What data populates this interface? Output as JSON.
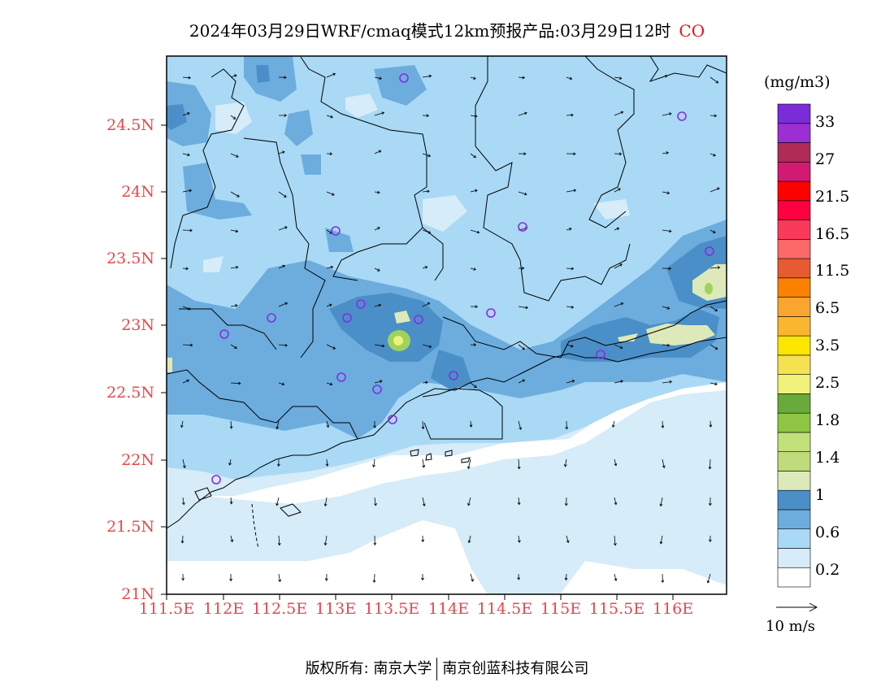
{
  "title": {
    "main": "2024年03月29日WRF/cmaq模式12km预报产品:03月29日12时",
    "species": "CO"
  },
  "map": {
    "lat_ticks": [
      "24.5N",
      "24N",
      "23.5N",
      "23N",
      "22.5N",
      "22N",
      "21.5N",
      "21N"
    ],
    "lon_ticks": [
      "111.5E",
      "112E",
      "112.5E",
      "113E",
      "113.5E",
      "114E",
      "114.5E",
      "115E",
      "115.5E",
      "116E"
    ],
    "colors": {
      "background": "#ffffff",
      "level_0_2": "#d6ecf8",
      "level_0_6": "#a9d9f5",
      "level_1": "#6cadde",
      "level_1_4": "#4a8fc7",
      "level_high": "#dde9b8",
      "peak_green": "#9ed25c",
      "peak_yellow": "#eef27a",
      "station_marker": "#8a2be2",
      "axis_label": "#e8474a"
    }
  },
  "colorbar": {
    "unit": "(mg/m3)",
    "colors": [
      "#ffffff",
      "#d6ecf8",
      "#a9d9f5",
      "#6cadde",
      "#4a8fc7",
      "#dde9b8",
      "#c0db7c",
      "#c2e07a",
      "#8ec644",
      "#6aaa3a",
      "#f0f27a",
      "#f6e151",
      "#fce600",
      "#fbb62f",
      "#f9a530",
      "#fb8200",
      "#e85a31",
      "#fd6868",
      "#fb3a5a",
      "#ff0040",
      "#fe0000",
      "#d21a73",
      "#b12b57",
      "#9c2ed4",
      "#7b2cd9"
    ],
    "labels": [
      "0.2",
      "0.6",
      "1",
      "1.4",
      "1.8",
      "2.5",
      "3.5",
      "6.5",
      "11.5",
      "16.5",
      "21.5",
      "27",
      "33"
    ],
    "reference_vector": "10 m/s"
  },
  "footer": {
    "copyright": "版权所有: 南京大学",
    "company": "南京创蓝科技有限公司"
  }
}
